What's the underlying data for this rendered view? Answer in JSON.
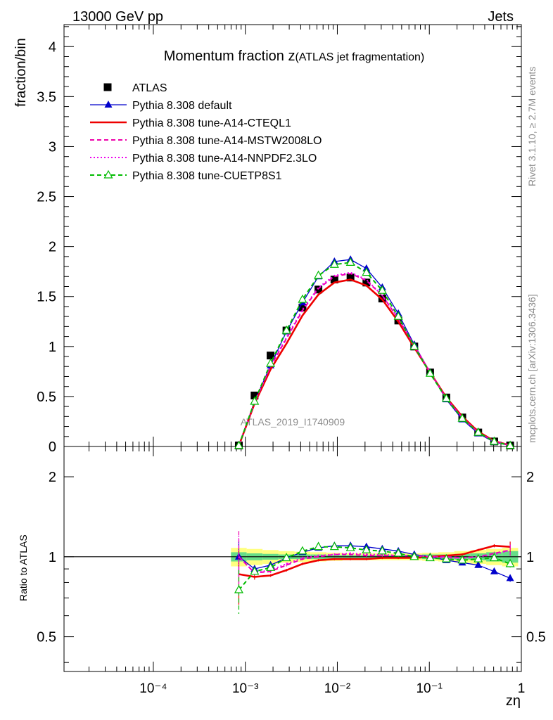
{
  "header": {
    "left": "13000 GeV pp",
    "right": "Jets"
  },
  "side_labels": {
    "rivet": "Rivet 3.1.10, ≥ 2.7M events",
    "mcplots": "mcplots.cern.ch [arXiv:1306.3436]"
  },
  "chart_data": [
    {
      "type": "line",
      "title_main": "Momentum fraction z",
      "title_sub": "(ATLAS jet fragmentation)",
      "ylabel": "fraction/bin",
      "watermark": "ATLAS_2019_I1740909",
      "x_scale": "log",
      "xlim": [
        1.07e-05,
        1
      ],
      "ylim": [
        0,
        4.22
      ],
      "y_ticks": [
        "0",
        "0.5",
        "1",
        "1.5",
        "2",
        "2.5",
        "3",
        "3.5",
        "4"
      ],
      "legend_position": "top-left",
      "legend": [
        {
          "label": "ATLAS",
          "color": "#000000",
          "style": "solid",
          "marker": "square"
        },
        {
          "label": "Pythia 8.308 default",
          "color": "#0000cc",
          "style": "solid",
          "marker": "triangle"
        },
        {
          "label": "Pythia 8.308 tune-A14-CTEQL1",
          "color": "#ee0000",
          "style": "solid",
          "marker": "none"
        },
        {
          "label": "Pythia 8.308 tune-A14-MSTW2008LO",
          "color": "#ee00aa",
          "style": "dashed",
          "marker": "none"
        },
        {
          "label": "Pythia 8.308 tune-A14-NNPDF2.3LO",
          "color": "#ee00ee",
          "style": "dotted",
          "marker": "none"
        },
        {
          "label": "Pythia 8.308 tune-CUETP8S1",
          "color": "#00bb00",
          "style": "dashed",
          "marker": "open-triangle"
        }
      ],
      "x": [
        0.00085,
        0.00126,
        0.00188,
        0.0028,
        0.00418,
        0.00623,
        0.0093,
        0.0139,
        0.0207,
        0.0308,
        0.046,
        0.0686,
        0.102,
        0.153,
        0.228,
        0.34,
        0.507,
        0.756
      ],
      "data": [
        0.01,
        0.51,
        0.91,
        1.16,
        1.39,
        1.57,
        1.67,
        1.69,
        1.64,
        1.48,
        1.26,
        1.0,
        0.74,
        0.49,
        0.29,
        0.14,
        0.05,
        0.01
      ],
      "series": [
        {
          "name": "Pythia 8.308 default",
          "values": [
            0.01,
            0.45,
            0.81,
            1.15,
            1.44,
            1.7,
            1.85,
            1.87,
            1.78,
            1.59,
            1.33,
            1.02,
            0.74,
            0.47,
            0.27,
            0.13,
            0.044,
            0.008
          ]
        },
        {
          "name": "Pythia 8.308 tune-A14-CTEQL1",
          "values": [
            0.008,
            0.43,
            0.77,
            1.03,
            1.31,
            1.52,
            1.64,
            1.67,
            1.61,
            1.47,
            1.25,
            0.99,
            0.74,
            0.49,
            0.3,
            0.15,
            0.055,
            0.011
          ]
        },
        {
          "name": "Pythia 8.308 tune-A14-MSTW2008LO",
          "values": [
            0.01,
            0.44,
            0.8,
            1.08,
            1.36,
            1.58,
            1.7,
            1.73,
            1.66,
            1.51,
            1.28,
            1.01,
            0.74,
            0.48,
            0.29,
            0.14,
            0.052,
            0.011
          ]
        },
        {
          "name": "Pythia 8.308 tune-A14-NNPDF2.3LO",
          "values": [
            0.01,
            0.44,
            0.81,
            1.09,
            1.37,
            1.59,
            1.71,
            1.74,
            1.67,
            1.51,
            1.28,
            1.01,
            0.74,
            0.48,
            0.29,
            0.14,
            0.051,
            0.011
          ]
        },
        {
          "name": "Pythia 8.308 tune-CUETP8S1",
          "values": [
            0.008,
            0.45,
            0.83,
            1.16,
            1.47,
            1.71,
            1.82,
            1.84,
            1.74,
            1.56,
            1.3,
            1.0,
            0.73,
            0.48,
            0.28,
            0.14,
            0.049,
            0.009
          ]
        }
      ]
    },
    {
      "type": "line",
      "ylabel": "Ratio to ATLAS",
      "xlabel": "zη",
      "x_scale": "log",
      "y_scale": "log",
      "xlim": [
        1.07e-05,
        1
      ],
      "ylim": [
        0.37,
        2.6
      ],
      "y_ticks": [
        "0.5",
        "1",
        "2"
      ],
      "x_ticks": [
        "10⁻⁴",
        "10⁻³",
        "10⁻²",
        "10⁻¹",
        "1"
      ],
      "band_inner": [
        0.04,
        0.03,
        0.025,
        0.02,
        0.02,
        0.02,
        0.015,
        0.015,
        0.015,
        0.015,
        0.015,
        0.015,
        0.02,
        0.02,
        0.025,
        0.03,
        0.04,
        0.05
      ],
      "band_outer": [
        0.08,
        0.07,
        0.06,
        0.05,
        0.045,
        0.04,
        0.035,
        0.03,
        0.03,
        0.03,
        0.03,
        0.03,
        0.035,
        0.04,
        0.05,
        0.06,
        0.07,
        0.08
      ],
      "series": [
        {
          "name": "Pythia 8.308 default",
          "values": [
            1.0,
            0.9,
            0.93,
            0.99,
            1.04,
            1.08,
            1.1,
            1.1,
            1.09,
            1.07,
            1.05,
            1.02,
            1.0,
            0.97,
            0.95,
            0.93,
            0.88,
            0.83
          ]
        },
        {
          "name": "Pythia 8.308 tune-A14-CTEQL1",
          "values": [
            0.86,
            0.84,
            0.85,
            0.89,
            0.94,
            0.97,
            0.98,
            0.98,
            0.98,
            0.99,
            0.99,
            0.99,
            1.0,
            1.01,
            1.02,
            1.06,
            1.1,
            1.09
          ]
        },
        {
          "name": "Pythia 8.308 tune-A14-MSTW2008LO",
          "values": [
            1.0,
            0.87,
            0.88,
            0.93,
            0.98,
            1.0,
            1.02,
            1.02,
            1.01,
            1.01,
            1.01,
            1.01,
            1.0,
            1.0,
            0.99,
            1.0,
            1.03,
            1.06
          ]
        },
        {
          "name": "Pythia 8.308 tune-A14-NNPDF2.3LO",
          "values": [
            1.0,
            0.87,
            0.89,
            0.94,
            0.99,
            1.01,
            1.02,
            1.03,
            1.02,
            1.02,
            1.01,
            1.01,
            1.0,
            0.99,
            0.99,
            1.0,
            1.02,
            1.06
          ]
        },
        {
          "name": "Pythia 8.308 tune-CUETP8S1",
          "values": [
            0.75,
            0.88,
            0.91,
            0.99,
            1.05,
            1.09,
            1.09,
            1.08,
            1.06,
            1.05,
            1.03,
            1.0,
            0.99,
            0.98,
            0.97,
            0.98,
            0.99,
            0.94
          ]
        }
      ],
      "errors": [
        {
          "name": "Pythia 8.308 default",
          "values": [
            0.15,
            0.02,
            0.01,
            0.01,
            0.01,
            0.01,
            0.01,
            0.01,
            0.01,
            0.01,
            0.01,
            0.01,
            0.01,
            0.01,
            0.01,
            0.01,
            0.015,
            0.025
          ]
        },
        {
          "name": "Pythia 8.308 tune-A14-CTEQL1",
          "values": [
            0.2,
            0.02,
            0.01,
            0.01,
            0.01,
            0.01,
            0.01,
            0.01,
            0.01,
            0.01,
            0.01,
            0.01,
            0.01,
            0.01,
            0.01,
            0.01,
            0.015,
            0.05
          ]
        },
        {
          "name": "Pythia 8.308 tune-A14-MSTW2008LO",
          "values": [
            0.25,
            0.02,
            0.01,
            0.01,
            0.01,
            0.01,
            0.01,
            0.01,
            0.01,
            0.01,
            0.01,
            0.01,
            0.01,
            0.01,
            0.01,
            0.01,
            0.015,
            0.05
          ]
        },
        {
          "name": "Pythia 8.308 tune-A14-NNPDF2.3LO",
          "values": [
            0.2,
            0.02,
            0.01,
            0.01,
            0.01,
            0.01,
            0.01,
            0.01,
            0.01,
            0.01,
            0.01,
            0.01,
            0.01,
            0.01,
            0.01,
            0.01,
            0.015,
            0.05
          ]
        },
        {
          "name": "Pythia 8.308 tune-CUETP8S1",
          "values": [
            0.14,
            0.02,
            0.01,
            0.01,
            0.01,
            0.01,
            0.01,
            0.01,
            0.01,
            0.01,
            0.01,
            0.01,
            0.01,
            0.01,
            0.01,
            0.01,
            0.015,
            0.03
          ]
        }
      ],
      "band_colors": {
        "inner": "#66dd88",
        "outer": "#ffff80"
      }
    }
  ]
}
